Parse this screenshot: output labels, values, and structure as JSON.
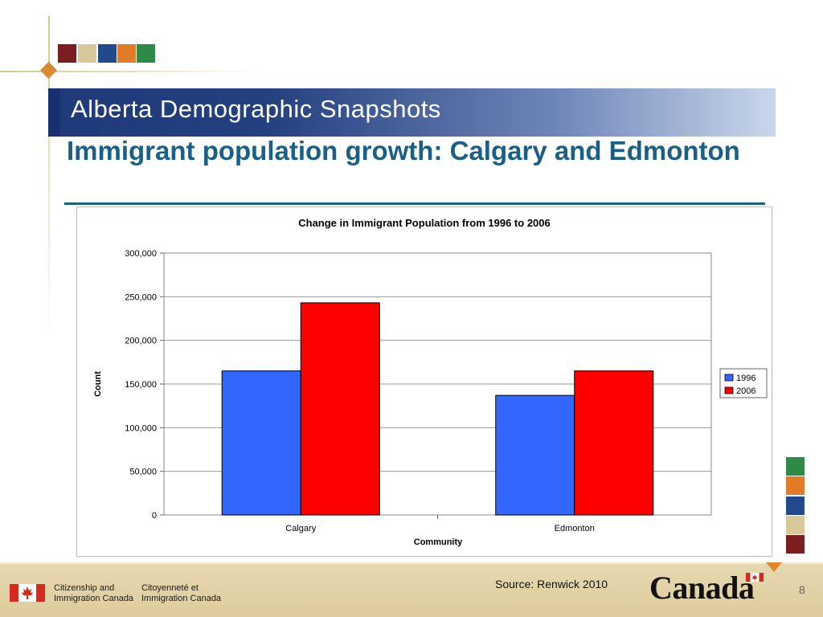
{
  "slide": {
    "banner_title": "Alberta Demographic Snapshots",
    "heading": "Immigrant population growth: Calgary and Edmonton",
    "source": "Source: Renwick 2010",
    "page_number": "8",
    "footer": {
      "left_en_1": "Citizenship and",
      "left_en_2": "Immigration Canada",
      "left_fr_1": "Citoyenneté et",
      "left_fr_2": "Immigration Canada",
      "wordmark": "Canada"
    },
    "palette": [
      "#7b1e22",
      "#d8c99a",
      "#214a8e",
      "#e07b2a",
      "#2e8b47"
    ]
  },
  "chart_data": {
    "type": "bar",
    "title": "Change in Immigrant Population from 1996 to 2006",
    "xlabel": "Community",
    "ylabel": "Count",
    "categories": [
      "Calgary",
      "Edmonton"
    ],
    "series": [
      {
        "name": "1996",
        "values": [
          165000,
          137000
        ],
        "color": "#3366ff"
      },
      {
        "name": "2006",
        "values": [
          243000,
          165000
        ],
        "color": "#ff0000"
      }
    ],
    "ylim": [
      0,
      300000
    ],
    "yticks": [
      "0",
      "50,000",
      "100,000",
      "150,000",
      "200,000",
      "250,000",
      "300,000"
    ],
    "grid": true,
    "legend": "right"
  }
}
